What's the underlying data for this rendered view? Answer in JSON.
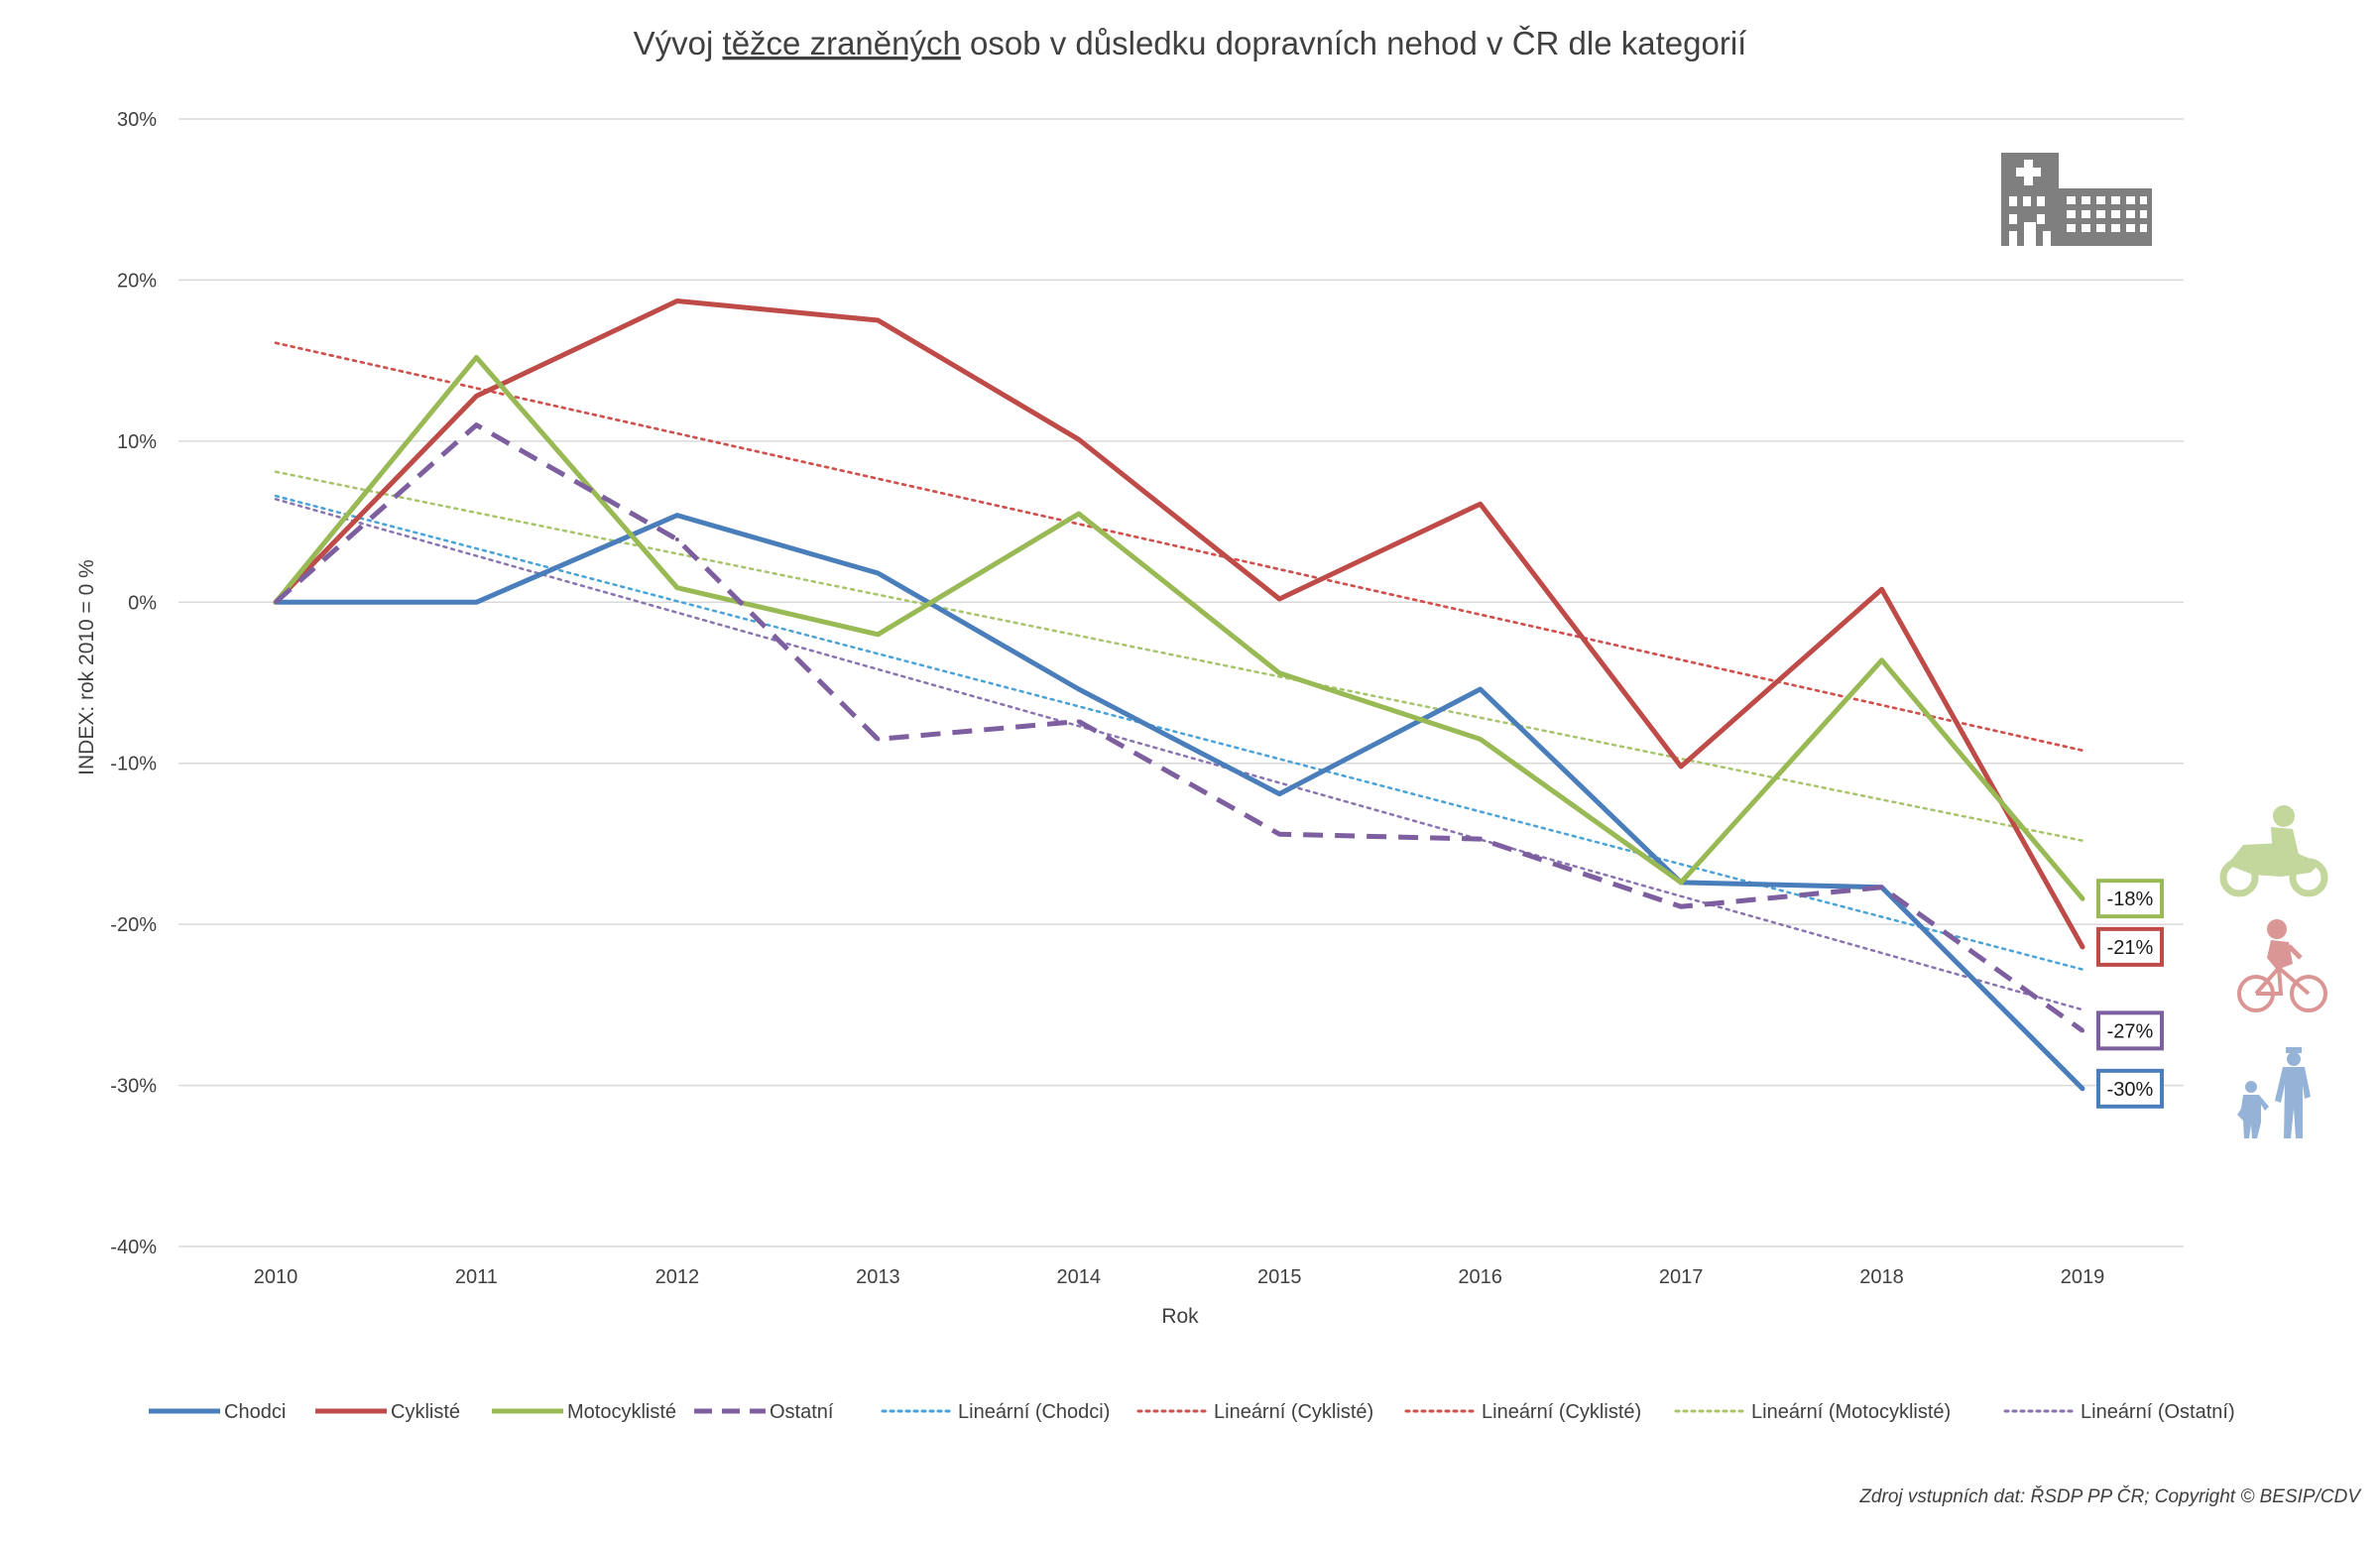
{
  "chart_data": {
    "type": "line",
    "title": {
      "prefix": "Vývoj ",
      "emphasis": "těžce zraněných",
      "suffix": " osob v důsledku dopravních nehod v ČR dle kategorií"
    },
    "xlabel": "Rok",
    "ylabel": "INDEX: rok 2010 = 0 %",
    "ylim": [
      -40,
      30
    ],
    "yticks": [
      30,
      20,
      10,
      0,
      -10,
      -20,
      -30,
      -40
    ],
    "ytick_labels": [
      "30%",
      "20%",
      "10%",
      "0%",
      "-10%",
      "-20%",
      "-30%",
      "-40%"
    ],
    "x": [
      "2010",
      "2011",
      "2012",
      "2013",
      "2014",
      "2015",
      "2016",
      "2017",
      "2018",
      "2019"
    ],
    "grid": true,
    "legend_position": "bottom",
    "series": [
      {
        "key": "chodci",
        "name": "Chodci",
        "color": "#4a7ebb",
        "style": "solid",
        "values": [
          0,
          0,
          5.4,
          1.8,
          -5.4,
          -11.9,
          -5.4,
          -17.4,
          -17.7,
          -30.2
        ]
      },
      {
        "key": "cykliste",
        "name": "Cyklisté",
        "color": "#be4b48",
        "style": "solid",
        "values": [
          0,
          12.8,
          18.7,
          17.5,
          10.1,
          0.2,
          6.1,
          -10.2,
          0.8,
          -21.4
        ]
      },
      {
        "key": "motocykliste",
        "name": "Motocyklisté",
        "color": "#98b954",
        "style": "solid",
        "values": [
          0,
          15.2,
          0.9,
          -2.0,
          5.5,
          -4.4,
          -8.5,
          -17.4,
          -3.6,
          -18.4
        ]
      },
      {
        "key": "ostatni",
        "name": "Ostatní",
        "color": "#7d5fa0",
        "style": "dashed",
        "values": [
          0,
          11.0,
          3.9,
          -8.5,
          -7.4,
          -14.4,
          -14.7,
          -18.9,
          -17.7,
          -26.6
        ]
      }
    ],
    "trendlines": [
      {
        "name": "Lineární (Chodci)",
        "color": "#4aa3d6",
        "start": 6.6,
        "end": -22.8
      },
      {
        "name": "Lineární (Cyklisté)",
        "color": "#d0504d",
        "start": 16.1,
        "end": -9.2
      },
      {
        "name": "Lineární (Cyklisté)",
        "color": "#d0504d",
        "start": 16.1,
        "end": -9.2
      },
      {
        "name": "Lineární (Motocyklisté)",
        "color": "#a8c46a",
        "start": 8.1,
        "end": -14.8
      },
      {
        "name": "Lineární (Ostatní)",
        "color": "#8a74b0",
        "start": 6.4,
        "end": -25.3
      }
    ],
    "end_labels": [
      {
        "text": "-18%",
        "color": "#98b954",
        "value": -18.4
      },
      {
        "text": "-21%",
        "color": "#be4b48",
        "value": -21.4
      },
      {
        "text": "-27%",
        "color": "#7d5fa0",
        "value": -26.6
      },
      {
        "text": "-30%",
        "color": "#4a7ebb",
        "value": -30.2
      }
    ],
    "source": "Zdroj vstupních dat: ŘSDP PP ČR; Copyright © BESIP/CDV"
  },
  "icons": {
    "hospital": "hospital-building-icon",
    "motorcycle": "motorcyclist-icon",
    "cyclist": "cyclist-icon",
    "pedestrian": "pedestrians-icon",
    "colors": {
      "hospital": "#7f7f7f",
      "motorcycle": "#c3d69b",
      "cyclist": "#da9694",
      "pedestrian": "#95b3d7"
    }
  }
}
